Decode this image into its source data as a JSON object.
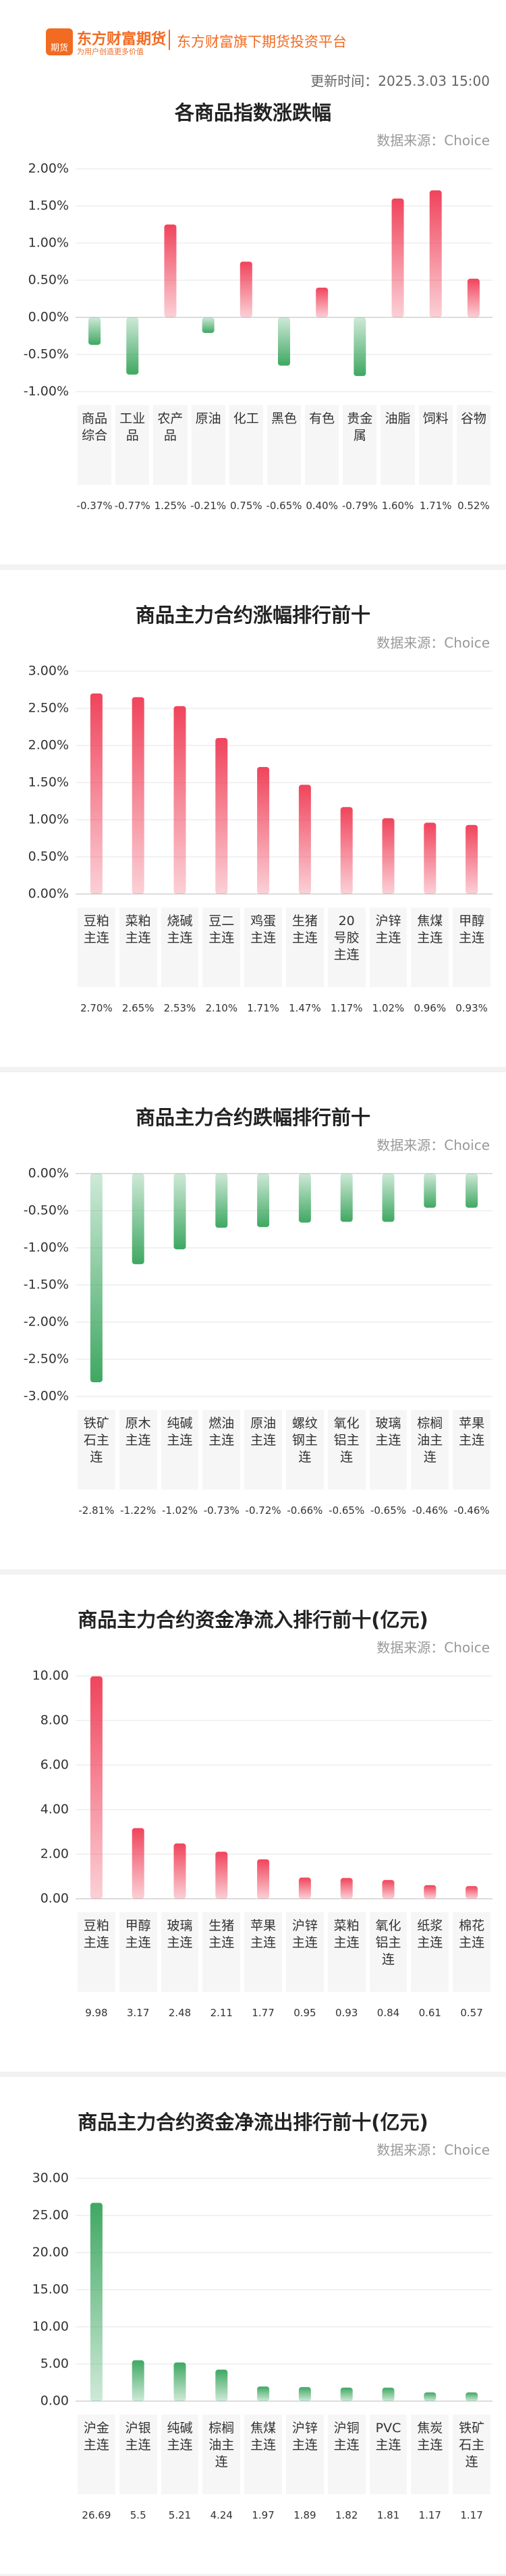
{
  "header": {
    "logo_badge": "期货",
    "logo": "东方财富期货",
    "slogan": "为用户创造更多价值",
    "platform": "东方财富旗下期货投资平台",
    "updated": "更新时间：2025.3.03 15:00"
  },
  "chart_data": [
    {
      "type": "bar",
      "title": "各商品指数涨跌幅",
      "source": "数据来源：Choice",
      "color_up": "#f0445c",
      "color_down": "#3fa862",
      "categories": [
        "商品综合",
        "工业品",
        "农产品",
        "原油",
        "化工",
        "黑色",
        "有色",
        "贵金属",
        "油脂",
        "饲料",
        "谷物"
      ],
      "values": [
        -0.37,
        -0.77,
        1.25,
        -0.21,
        0.75,
        -0.65,
        0.4,
        -0.79,
        1.6,
        1.71,
        0.52
      ],
      "value_labels": [
        "-0.37%",
        "-0.77%",
        "1.25%",
        "-0.21%",
        "0.75%",
        "-0.65%",
        "0.40%",
        "-0.79%",
        "1.60%",
        "1.71%",
        "0.52%"
      ],
      "ylim": [
        -1,
        2
      ],
      "yticks": [
        {
          "value": 2,
          "label": "2.00%"
        },
        {
          "value": 1.5,
          "label": "1.50%"
        },
        {
          "value": 1,
          "label": "1.00%"
        },
        {
          "value": 0.5,
          "label": "0.50%"
        },
        {
          "value": 0,
          "label": "0.00%"
        },
        {
          "value": -0.5,
          "label": "-0.50%"
        },
        {
          "value": -1,
          "label": "-1.00%"
        }
      ],
      "grid": true
    },
    {
      "type": "bar",
      "title": "商品主力合约涨幅排行前十",
      "source": "数据来源：Choice",
      "color_up": "#f0445c",
      "color_down": "#3fa862",
      "categories": [
        "豆粕主连",
        "菜粕主连",
        "烧碱主连",
        "豆二主连",
        "鸡蛋主连",
        "生猪主连",
        "20号胶主连",
        "沪锌主连",
        "焦煤主连",
        "甲醇主连"
      ],
      "values": [
        2.7,
        2.65,
        2.53,
        2.1,
        1.71,
        1.47,
        1.17,
        1.02,
        0.96,
        0.93
      ],
      "value_labels": [
        "2.70%",
        "2.65%",
        "2.53%",
        "2.10%",
        "1.71%",
        "1.47%",
        "1.17%",
        "1.02%",
        "0.96%",
        "0.93%"
      ],
      "ylim": [
        0,
        3
      ],
      "yticks": [
        {
          "value": 3,
          "label": "3.00%"
        },
        {
          "value": 2.5,
          "label": "2.50%"
        },
        {
          "value": 2,
          "label": "2.00%"
        },
        {
          "value": 1.5,
          "label": "1.50%"
        },
        {
          "value": 1,
          "label": "1.00%"
        },
        {
          "value": 0.5,
          "label": "0.50%"
        },
        {
          "value": 0,
          "label": "0.00%"
        }
      ],
      "grid": true
    },
    {
      "type": "bar",
      "title": "商品主力合约跌幅排行前十",
      "source": "数据来源：Choice",
      "color_up": "#f0445c",
      "color_down": "#3fa862",
      "categories": [
        "铁矿石主连",
        "原木主连",
        "纯碱主连",
        "燃油主连",
        "原油主连",
        "螺纹钢主连",
        "氧化铝主连",
        "玻璃主连",
        "棕榈油主连",
        "苹果主连"
      ],
      "values": [
        -2.81,
        -1.22,
        -1.02,
        -0.73,
        -0.72,
        -0.66,
        -0.65,
        -0.65,
        -0.46,
        -0.46
      ],
      "value_labels": [
        "-2.81%",
        "-1.22%",
        "-1.02%",
        "-0.73%",
        "-0.72%",
        "-0.66%",
        "-0.65%",
        "-0.65%",
        "-0.46%",
        "-0.46%"
      ],
      "ylim": [
        -3,
        0
      ],
      "yticks": [
        {
          "value": 0,
          "label": "0.00%"
        },
        {
          "value": -0.5,
          "label": "-0.50%"
        },
        {
          "value": -1,
          "label": "-1.00%"
        },
        {
          "value": -1.5,
          "label": "-1.50%"
        },
        {
          "value": -2,
          "label": "-2.00%"
        },
        {
          "value": -2.5,
          "label": "-2.50%"
        },
        {
          "value": -3,
          "label": "-3.00%"
        }
      ],
      "grid": true
    },
    {
      "type": "bar",
      "title": "商品主力合约资金净流入排行前十(亿元)",
      "source": "数据来源：Choice",
      "color_up": "#f0445c",
      "color_down": "#3fa862",
      "categories": [
        "豆粕主连",
        "甲醇主连",
        "玻璃主连",
        "生猪主连",
        "苹果主连",
        "沪锌主连",
        "菜粕主连",
        "氧化铝主连",
        "纸浆主连",
        "棉花主连"
      ],
      "values": [
        9.98,
        3.17,
        2.48,
        2.11,
        1.77,
        0.95,
        0.93,
        0.84,
        0.61,
        0.57
      ],
      "ylim": [
        0,
        10
      ],
      "yticks": [
        {
          "value": 10,
          "label": "10.00"
        },
        {
          "value": 8,
          "label": "8.00"
        },
        {
          "value": 6,
          "label": "6.00"
        },
        {
          "value": 4,
          "label": "4.00"
        },
        {
          "value": 2,
          "label": "2.00"
        },
        {
          "value": 0,
          "label": "0.00"
        }
      ],
      "grid": true
    },
    {
      "type": "bar",
      "title": "商品主力合约资金净流出排行前十(亿元)",
      "source": "数据来源：Choice",
      "color_up": "#3fa862",
      "color_down": "#3fa862",
      "categories": [
        "沪金主连",
        "沪银主连",
        "纯碱主连",
        "棕榈油主连",
        "焦煤主连",
        "沪锌主连",
        "沪铜主连",
        "PVC主连",
        "焦炭主连",
        "铁矿石主连"
      ],
      "values": [
        26.69,
        5.5,
        5.21,
        4.24,
        1.97,
        1.89,
        1.82,
        1.81,
        1.17,
        1.17
      ],
      "ylim": [
        0,
        30
      ],
      "yticks": [
        {
          "value": 30,
          "label": "30.00"
        },
        {
          "value": 25,
          "label": "25.00"
        },
        {
          "value": 20,
          "label": "20.00"
        },
        {
          "value": 15,
          "label": "15.00"
        },
        {
          "value": 10,
          "label": "10.00"
        },
        {
          "value": 5,
          "label": "5.00"
        },
        {
          "value": 0,
          "label": "0.00"
        }
      ],
      "grid": true
    }
  ]
}
